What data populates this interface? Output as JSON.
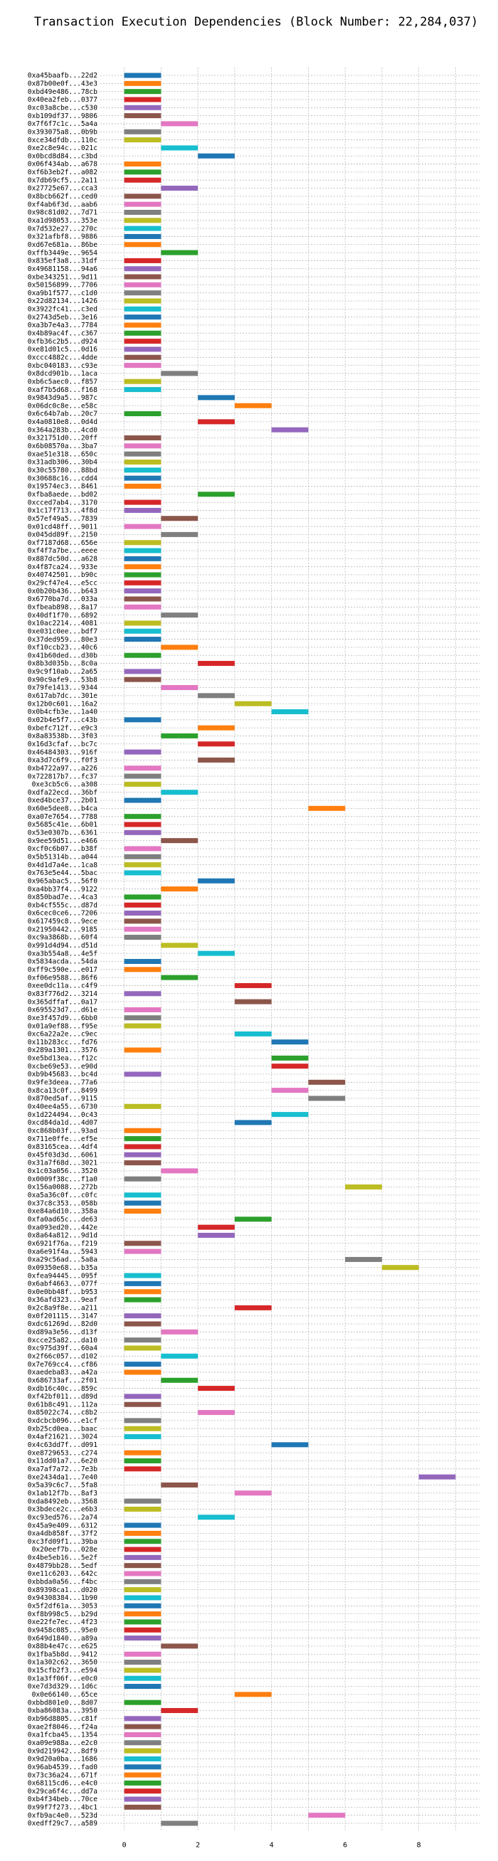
{
  "chart_data": {
    "type": "bar",
    "orientation": "horizontal",
    "title": "Transaction Execution Dependencies (Block Number: 22,284,037)",
    "xlabel": "",
    "ylabel": "",
    "xlim": [
      -0.65,
      9.65
    ],
    "xticks": [
      0,
      2,
      4,
      6,
      8
    ],
    "grid": true,
    "palette": [
      "#1f77b4",
      "#ff7f0e",
      "#2ca02c",
      "#d62728",
      "#9467bd",
      "#8c564b",
      "#e377c2",
      "#7f7f7f",
      "#bcbd22",
      "#17becf"
    ],
    "rows": [
      {
        "tx": "0xa45baafb...22d2",
        "start": 0,
        "end": 1
      },
      {
        "tx": "0x87b00e0f...43e3",
        "start": 0,
        "end": 1
      },
      {
        "tx": "0xbd49e486...78cb",
        "start": 0,
        "end": 1
      },
      {
        "tx": "0x40ea2feb...0377",
        "start": 0,
        "end": 1
      },
      {
        "tx": "0xc03a8cbe...c530",
        "start": 0,
        "end": 1
      },
      {
        "tx": "0xb109df37...9806",
        "start": 0,
        "end": 1
      },
      {
        "tx": "0x7f6f7c1c...5a4a",
        "start": 1,
        "end": 2
      },
      {
        "tx": "0x393075a8...0b9b",
        "start": 0,
        "end": 1
      },
      {
        "tx": "0xce34dfdb...110c",
        "start": 0,
        "end": 1
      },
      {
        "tx": "0xe2c8e94c...021c",
        "start": 1,
        "end": 2
      },
      {
        "tx": "0x0bcd8d84...c3bd",
        "start": 2,
        "end": 3
      },
      {
        "tx": "0x06f434ab...a678",
        "start": 0,
        "end": 1
      },
      {
        "tx": "0xf6b3eb2f...a082",
        "start": 0,
        "end": 1
      },
      {
        "tx": "0x7db69cf5...2a11",
        "start": 0,
        "end": 1
      },
      {
        "tx": "0x27725e67...cca3",
        "start": 1,
        "end": 2
      },
      {
        "tx": "0x8bcb662f...ced0",
        "start": 0,
        "end": 1
      },
      {
        "tx": "0xf4ab6f3d...aab6",
        "start": 0,
        "end": 1
      },
      {
        "tx": "0x98c81d02...7d71",
        "start": 0,
        "end": 1
      },
      {
        "tx": "0xa1d98053...353e",
        "start": 0,
        "end": 1
      },
      {
        "tx": "0x7d532e27...270c",
        "start": 0,
        "end": 1
      },
      {
        "tx": "0x321afbf8...9886",
        "start": 0,
        "end": 1
      },
      {
        "tx": "0xd67e681a...86be",
        "start": 0,
        "end": 1
      },
      {
        "tx": "0xffb3449e...9654",
        "start": 1,
        "end": 2
      },
      {
        "tx": "0x835ef3a8...31df",
        "start": 0,
        "end": 1
      },
      {
        "tx": "0x49681158...94a6",
        "start": 0,
        "end": 1
      },
      {
        "tx": "0xbe343251...9d11",
        "start": 0,
        "end": 1
      },
      {
        "tx": "0x50156899...7706",
        "start": 0,
        "end": 1
      },
      {
        "tx": "0xa9b1f577...c1d0",
        "start": 0,
        "end": 1
      },
      {
        "tx": "0x22d82134...1426",
        "start": 0,
        "end": 1
      },
      {
        "tx": "0x3922fc41...c3ed",
        "start": 0,
        "end": 1
      },
      {
        "tx": "0x2743d5eb...3e16",
        "start": 0,
        "end": 1
      },
      {
        "tx": "0xa3b7e4a3...7784",
        "start": 0,
        "end": 1
      },
      {
        "tx": "0x4b89ac4f...c367",
        "start": 0,
        "end": 1
      },
      {
        "tx": "0xfb36c2b5...d924",
        "start": 0,
        "end": 1
      },
      {
        "tx": "0xe81d01c5...0d16",
        "start": 0,
        "end": 1
      },
      {
        "tx": "0xccc4882c...4dde",
        "start": 0,
        "end": 1
      },
      {
        "tx": "0xbc040183...c93e",
        "start": 0,
        "end": 1
      },
      {
        "tx": "0x8dcd901b...1aca",
        "start": 1,
        "end": 2
      },
      {
        "tx": "0xb6c5aec0...f857",
        "start": 0,
        "end": 1
      },
      {
        "tx": "0xaf7b5d68...f168",
        "start": 0,
        "end": 1
      },
      {
        "tx": "0x9843d9a5...987c",
        "start": 2,
        "end": 3
      },
      {
        "tx": "0x06dc0c8e...e58c",
        "start": 3,
        "end": 4
      },
      {
        "tx": "0x6c64b7ab...20c7",
        "start": 0,
        "end": 1
      },
      {
        "tx": "0x4a0810e8...0d4d",
        "start": 2,
        "end": 3
      },
      {
        "tx": "0x364a283b...4cd0",
        "start": 4,
        "end": 5
      },
      {
        "tx": "0x321751d0...20ff",
        "start": 0,
        "end": 1
      },
      {
        "tx": "0x6b08570a...3ba7",
        "start": 0,
        "end": 1
      },
      {
        "tx": "0xae51e318...650c",
        "start": 0,
        "end": 1
      },
      {
        "tx": "0x31adb306...30b4",
        "start": 0,
        "end": 1
      },
      {
        "tx": "0x30c55780...88bd",
        "start": 0,
        "end": 1
      },
      {
        "tx": "0x30688c16...cdd4",
        "start": 0,
        "end": 1
      },
      {
        "tx": "0x19574ec3...8461",
        "start": 0,
        "end": 1
      },
      {
        "tx": "0xfba8aede...bd02",
        "start": 2,
        "end": 3
      },
      {
        "tx": "0xcced7ab4...3170",
        "start": 0,
        "end": 1
      },
      {
        "tx": "0x1c17f713...4f8d",
        "start": 0,
        "end": 1
      },
      {
        "tx": "0x57ef49a5...7839",
        "start": 1,
        "end": 2
      },
      {
        "tx": "0x01cd48ff...9011",
        "start": 0,
        "end": 1
      },
      {
        "tx": "0x045dd89f...2150",
        "start": 1,
        "end": 2
      },
      {
        "tx": "0xf7187d68...656e",
        "start": 0,
        "end": 1
      },
      {
        "tx": "0xf4f7a7be...eeee",
        "start": 0,
        "end": 1
      },
      {
        "tx": "0x887dc50d...a628",
        "start": 0,
        "end": 1
      },
      {
        "tx": "0x4f87ca24...933e",
        "start": 0,
        "end": 1
      },
      {
        "tx": "0x40742501...b90c",
        "start": 0,
        "end": 1
      },
      {
        "tx": "0x29cf47e4...e5cc",
        "start": 0,
        "end": 1
      },
      {
        "tx": "0x0b20b436...b643",
        "start": 0,
        "end": 1
      },
      {
        "tx": "0x6770ba7d...033a",
        "start": 0,
        "end": 1
      },
      {
        "tx": "0xfbeab898...8a17",
        "start": 0,
        "end": 1
      },
      {
        "tx": "0x40df1f70...6892",
        "start": 1,
        "end": 2
      },
      {
        "tx": "0x10ac2214...4081",
        "start": 0,
        "end": 1
      },
      {
        "tx": "0xe031c0ee...bdf7",
        "start": 0,
        "end": 1
      },
      {
        "tx": "0x37ded959...80e3",
        "start": 0,
        "end": 1
      },
      {
        "tx": "0xf10ccb23...40c6",
        "start": 1,
        "end": 2
      },
      {
        "tx": "0x41b60ded...d30b",
        "start": 0,
        "end": 1
      },
      {
        "tx": "0x8b3d035b...8c0a",
        "start": 2,
        "end": 3
      },
      {
        "tx": "0x9c9f10ab...2a65",
        "start": 0,
        "end": 1
      },
      {
        "tx": "0x90c9afe9...53b8",
        "start": 0,
        "end": 1
      },
      {
        "tx": "0x79fe1413...9344",
        "start": 1,
        "end": 2
      },
      {
        "tx": "0x617ab7dc...301e",
        "start": 2,
        "end": 3
      },
      {
        "tx": "0x12b0c601...16a2",
        "start": 3,
        "end": 4
      },
      {
        "tx": "0x0b4cfb3e...1a40",
        "start": 4,
        "end": 5
      },
      {
        "tx": "0x02b4e5f7...c43b",
        "start": 0,
        "end": 1
      },
      {
        "tx": "0xbefc712f...e9c3",
        "start": 2,
        "end": 3
      },
      {
        "tx": "0x8a83538b...3f03",
        "start": 1,
        "end": 2
      },
      {
        "tx": "0x16d3cfaf...bc7c",
        "start": 2,
        "end": 3
      },
      {
        "tx": "0x46484303...916f",
        "start": 0,
        "end": 1
      },
      {
        "tx": "0xa3d7c6f9...f0f3",
        "start": 2,
        "end": 3
      },
      {
        "tx": "0xb4722a97...a226",
        "start": 0,
        "end": 1
      },
      {
        "tx": "0x722817b7...fc37",
        "start": 0,
        "end": 1
      },
      {
        "tx": "0xe3cb5c6...a308",
        "start": 0,
        "end": 1
      },
      {
        "tx": "0xdfa22ecd...36bf",
        "start": 1,
        "end": 2
      },
      {
        "tx": "0xed4bce37...2b01",
        "start": 0,
        "end": 1
      },
      {
        "tx": "0x60e5dee8...b4ca",
        "start": 5,
        "end": 6
      },
      {
        "tx": "0xa07e7654...7788",
        "start": 0,
        "end": 1
      },
      {
        "tx": "0x5685c41e...6b01",
        "start": 0,
        "end": 1
      },
      {
        "tx": "0x53e0307b...6361",
        "start": 0,
        "end": 1
      },
      {
        "tx": "0x9ee59d51...e466",
        "start": 1,
        "end": 2
      },
      {
        "tx": "0xcf0c6b07...b38f",
        "start": 0,
        "end": 1
      },
      {
        "tx": "0x5b51314b...a044",
        "start": 0,
        "end": 1
      },
      {
        "tx": "0x4d1d7a4e...1ca8",
        "start": 0,
        "end": 1
      },
      {
        "tx": "0x763e5e44...5bac",
        "start": 0,
        "end": 1
      },
      {
        "tx": "0x965abac5...56f0",
        "start": 2,
        "end": 3
      },
      {
        "tx": "0xa4bb37f4...9122",
        "start": 1,
        "end": 2
      },
      {
        "tx": "0x850bad7e...4ca3",
        "start": 0,
        "end": 1
      },
      {
        "tx": "0xb4cf555c...d87d",
        "start": 0,
        "end": 1
      },
      {
        "tx": "0x6cec0ce6...7206",
        "start": 0,
        "end": 1
      },
      {
        "tx": "0x617459c8...9ece",
        "start": 0,
        "end": 1
      },
      {
        "tx": "0x21950442...9185",
        "start": 0,
        "end": 1
      },
      {
        "tx": "0xc9a3868b...60f4",
        "start": 0,
        "end": 1
      },
      {
        "tx": "0x991d4d94...d51d",
        "start": 1,
        "end": 2
      },
      {
        "tx": "0xa3b554a8...4e5f",
        "start": 2,
        "end": 3
      },
      {
        "tx": "0x5834acda...54da",
        "start": 0,
        "end": 1
      },
      {
        "tx": "0xff9c590e...e017",
        "start": 0,
        "end": 1
      },
      {
        "tx": "0xf06e9588...86f6",
        "start": 1,
        "end": 2
      },
      {
        "tx": "0xee0dc11a...c4f9",
        "start": 3,
        "end": 4
      },
      {
        "tx": "0x83f776d2...3214",
        "start": 0,
        "end": 1
      },
      {
        "tx": "0x365dffaf...0a17",
        "start": 3,
        "end": 4
      },
      {
        "tx": "0x695523d7...d61e",
        "start": 0,
        "end": 1
      },
      {
        "tx": "0xe3f457d9...6bb0",
        "start": 0,
        "end": 1
      },
      {
        "tx": "0x01a9ef88...f95e",
        "start": 0,
        "end": 1
      },
      {
        "tx": "0xc6a22a2e...c9ec",
        "start": 3,
        "end": 4
      },
      {
        "tx": "0x11b283cc...fd76",
        "start": 4,
        "end": 5
      },
      {
        "tx": "0x289a1301...3576",
        "start": 0,
        "end": 1
      },
      {
        "tx": "0xe5bd13ea...f12c",
        "start": 4,
        "end": 5
      },
      {
        "tx": "0xcbe69e53...e90d",
        "start": 4,
        "end": 5
      },
      {
        "tx": "0xb9b45683...bc4d",
        "start": 0,
        "end": 1
      },
      {
        "tx": "0x9fe3deea...77a6",
        "start": 5,
        "end": 6
      },
      {
        "tx": "0x8ca13c0f...8499",
        "start": 4,
        "end": 5
      },
      {
        "tx": "0x870ed5af...9115",
        "start": 5,
        "end": 6
      },
      {
        "tx": "0x40ee4a55...6730",
        "start": 0,
        "end": 1
      },
      {
        "tx": "0x1d224494...0c43",
        "start": 4,
        "end": 5
      },
      {
        "tx": "0xcd84da1d...4d07",
        "start": 3,
        "end": 4
      },
      {
        "tx": "0xc868b03f...93ad",
        "start": 0,
        "end": 1
      },
      {
        "tx": "0x711e0ffe...ef5e",
        "start": 0,
        "end": 1
      },
      {
        "tx": "0x83165cea...4df4",
        "start": 0,
        "end": 1
      },
      {
        "tx": "0x45f03d3d...6061",
        "start": 0,
        "end": 1
      },
      {
        "tx": "0x31a7f68d...3021",
        "start": 0,
        "end": 1
      },
      {
        "tx": "0x1c03a056...3520",
        "start": 1,
        "end": 2
      },
      {
        "tx": "0x0009f38c...f1a0",
        "start": 0,
        "end": 1
      },
      {
        "tx": "0x156a0088...272b",
        "start": 6,
        "end": 7
      },
      {
        "tx": "0xa5a36c0f...c0fc",
        "start": 0,
        "end": 1
      },
      {
        "tx": "0x37c8c353...058b",
        "start": 0,
        "end": 1
      },
      {
        "tx": "0xe84a6d10...358a",
        "start": 0,
        "end": 1
      },
      {
        "tx": "0xfa0ad65c...de63",
        "start": 3,
        "end": 4
      },
      {
        "tx": "0xa093ed20...442e",
        "start": 2,
        "end": 3
      },
      {
        "tx": "0x8a64a812...9d1d",
        "start": 2,
        "end": 3
      },
      {
        "tx": "0x6921f76a...f219",
        "start": 0,
        "end": 1
      },
      {
        "tx": "0xa6e91f4a...5943",
        "start": 0,
        "end": 1
      },
      {
        "tx": "0xa29c56ad...5a8a",
        "start": 6,
        "end": 7
      },
      {
        "tx": "0x09350e68...b35a",
        "start": 7,
        "end": 8
      },
      {
        "tx": "0xfea94445...095f",
        "start": 0,
        "end": 1
      },
      {
        "tx": "0x6abf4663...077f",
        "start": 0,
        "end": 1
      },
      {
        "tx": "0x0e0bb48f...b953",
        "start": 0,
        "end": 1
      },
      {
        "tx": "0x36afd323...9eaf",
        "start": 0,
        "end": 1
      },
      {
        "tx": "0x2c8a9f8e...a211",
        "start": 3,
        "end": 4
      },
      {
        "tx": "0x0f201115...3147",
        "start": 0,
        "end": 1
      },
      {
        "tx": "0xdc61269d...82d0",
        "start": 0,
        "end": 1
      },
      {
        "tx": "0xd89a3e56...d13f",
        "start": 1,
        "end": 2
      },
      {
        "tx": "0xcce25a82...da10",
        "start": 0,
        "end": 1
      },
      {
        "tx": "0xc975d39f...60a4",
        "start": 0,
        "end": 1
      },
      {
        "tx": "0x2f66c057...d102",
        "start": 1,
        "end": 2
      },
      {
        "tx": "0x7e769cc4...cf86",
        "start": 0,
        "end": 1
      },
      {
        "tx": "0xaedeba83...a42a",
        "start": 0,
        "end": 1
      },
      {
        "tx": "0x686733af...2f01",
        "start": 1,
        "end": 2
      },
      {
        "tx": "0xdb16c40c...859c",
        "start": 2,
        "end": 3
      },
      {
        "tx": "0xf42bf011...d89d",
        "start": 0,
        "end": 1
      },
      {
        "tx": "0x61b8c491...112a",
        "start": 0,
        "end": 1
      },
      {
        "tx": "0x85022c74...c8b2",
        "start": 2,
        "end": 3
      },
      {
        "tx": "0xdcbcb096...e1cf",
        "start": 0,
        "end": 1
      },
      {
        "tx": "0xb25cd0ea...baac",
        "start": 0,
        "end": 1
      },
      {
        "tx": "0x4af21621...3024",
        "start": 0,
        "end": 1
      },
      {
        "tx": "0x4c63dd7f...d091",
        "start": 4,
        "end": 5
      },
      {
        "tx": "0xe8729653...c274",
        "start": 0,
        "end": 1
      },
      {
        "tx": "0x11dd01a7...6e20",
        "start": 0,
        "end": 1
      },
      {
        "tx": "0xa7af7a72...7e3b",
        "start": 0,
        "end": 1
      },
      {
        "tx": "0xe2434da1...7e40",
        "start": 8,
        "end": 9
      },
      {
        "tx": "0x5a39c6c7...5fa8",
        "start": 1,
        "end": 2
      },
      {
        "tx": "0x1ab12f7b...8af3",
        "start": 3,
        "end": 4
      },
      {
        "tx": "0xda8492eb...3568",
        "start": 0,
        "end": 1
      },
      {
        "tx": "0x3bdece2c...e6b3",
        "start": 0,
        "end": 1
      },
      {
        "tx": "0xc93ed576...2a74",
        "start": 2,
        "end": 3
      },
      {
        "tx": "0x45a9e409...6312",
        "start": 0,
        "end": 1
      },
      {
        "tx": "0xa4db858f...37f2",
        "start": 0,
        "end": 1
      },
      {
        "tx": "0xc3fd09f1...39ba",
        "start": 0,
        "end": 1
      },
      {
        "tx": "0x20eef7b...028e",
        "start": 0,
        "end": 1
      },
      {
        "tx": "0x4be5eb16...5e2f",
        "start": 0,
        "end": 1
      },
      {
        "tx": "0x4879bb28...5edf",
        "start": 0,
        "end": 1
      },
      {
        "tx": "0xe11c6203...642c",
        "start": 0,
        "end": 1
      },
      {
        "tx": "0xbbda0a56...f4bc",
        "start": 0,
        "end": 1
      },
      {
        "tx": "0x89398ca1...d020",
        "start": 0,
        "end": 1
      },
      {
        "tx": "0x94308384...1b90",
        "start": 0,
        "end": 1
      },
      {
        "tx": "0x5f2df61a...3053",
        "start": 0,
        "end": 1
      },
      {
        "tx": "0xf8b998c5...b29d",
        "start": 0,
        "end": 1
      },
      {
        "tx": "0xe22fe7ec...4f23",
        "start": 0,
        "end": 1
      },
      {
        "tx": "0x9458c085...95e0",
        "start": 0,
        "end": 1
      },
      {
        "tx": "0x649d1840...a89a",
        "start": 0,
        "end": 1
      },
      {
        "tx": "0x88b4e47c...e625",
        "start": 1,
        "end": 2
      },
      {
        "tx": "0x1fba5b8d...9412",
        "start": 0,
        "end": 1
      },
      {
        "tx": "0x1a302c62...3650",
        "start": 0,
        "end": 1
      },
      {
        "tx": "0x15cfb2f3...e594",
        "start": 0,
        "end": 1
      },
      {
        "tx": "0x1a3ff06f...e0c0",
        "start": 0,
        "end": 1
      },
      {
        "tx": "0xe7d3d329...1d6c",
        "start": 0,
        "end": 1
      },
      {
        "tx": "0x0e66140...65ce",
        "start": 3,
        "end": 4
      },
      {
        "tx": "0xbbd801e0...8d07",
        "start": 0,
        "end": 1
      },
      {
        "tx": "0xba86083a...3950",
        "start": 1,
        "end": 2
      },
      {
        "tx": "0xb96d8805...c81f",
        "start": 0,
        "end": 1
      },
      {
        "tx": "0xae2f8046...f24a",
        "start": 0,
        "end": 1
      },
      {
        "tx": "0xa1fcba45...1354",
        "start": 0,
        "end": 1
      },
      {
        "tx": "0xa09e988a...e2c0",
        "start": 0,
        "end": 1
      },
      {
        "tx": "0x9d219942...8df9",
        "start": 0,
        "end": 1
      },
      {
        "tx": "0x9d20a0ba...1686",
        "start": 0,
        "end": 1
      },
      {
        "tx": "0x96ab4539...fad0",
        "start": 0,
        "end": 1
      },
      {
        "tx": "0x73c36a24...671f",
        "start": 0,
        "end": 1
      },
      {
        "tx": "0x68115cd6...e4c0",
        "start": 0,
        "end": 1
      },
      {
        "tx": "0x29ca6f4c...dd7a",
        "start": 0,
        "end": 1
      },
      {
        "tx": "0xb4f34beb...70ce",
        "start": 0,
        "end": 1
      },
      {
        "tx": "0x99f7f273...4bc1",
        "start": 0,
        "end": 1
      },
      {
        "tx": "0xfb9ac4e0...523d",
        "start": 5,
        "end": 6
      },
      {
        "tx": "0xedff29c7...a589",
        "start": 1,
        "end": 2
      }
    ]
  }
}
